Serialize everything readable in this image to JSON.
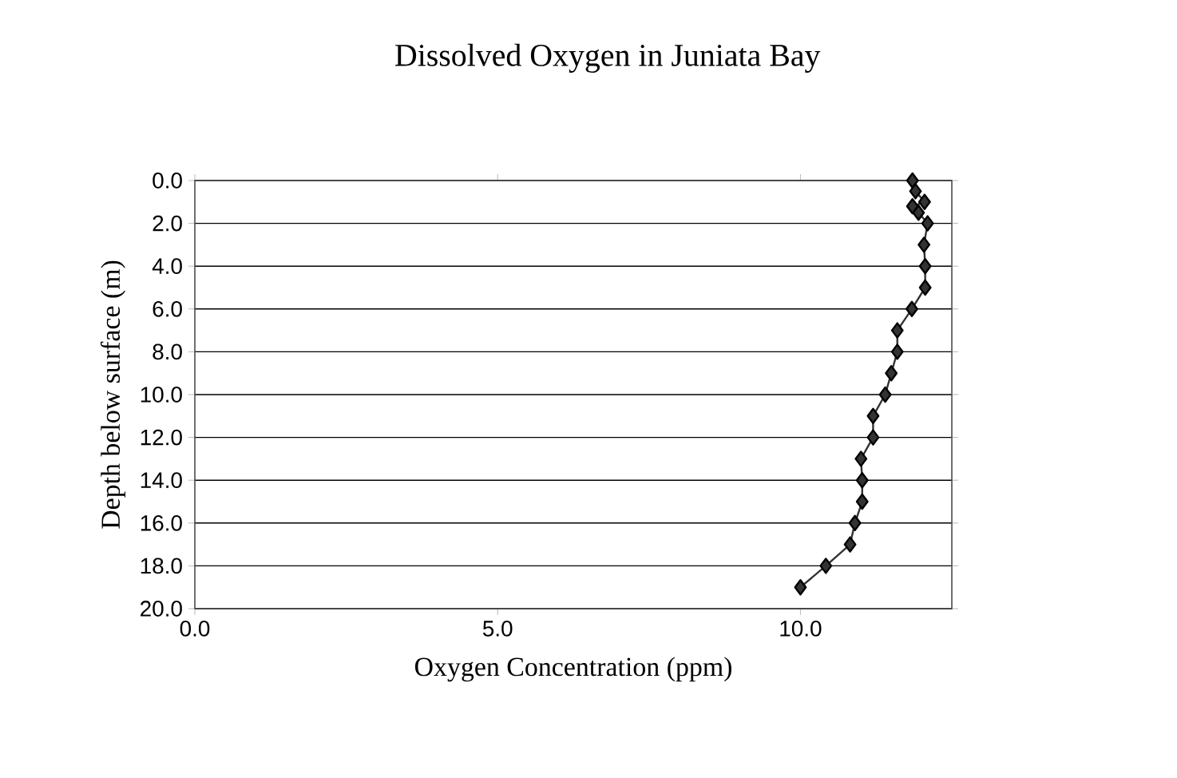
{
  "chart_data": {
    "type": "line",
    "title": "Dissolved Oxygen in Juniata Bay",
    "xlabel": "Oxygen Concentration (ppm)",
    "ylabel": "Depth below surface (m)",
    "x": [
      11.85,
      11.9,
      12.05,
      11.85,
      11.95,
      12.1,
      12.04,
      12.06,
      12.06,
      11.84,
      11.6,
      11.6,
      11.5,
      11.4,
      11.2,
      11.2,
      11.0,
      11.02,
      11.02,
      10.9,
      10.82,
      10.42,
      10.0
    ],
    "values": [
      0,
      0.5,
      1.0,
      1.2,
      1.5,
      2,
      3,
      4,
      5,
      6,
      7,
      8,
      9,
      10,
      11,
      12,
      13,
      14,
      15,
      16,
      17,
      18,
      19
    ],
    "color": "#333333",
    "marker": "diamond",
    "line_style": "solid",
    "grid": "y",
    "xlim": [
      0,
      12.5
    ],
    "ylim": [
      20,
      0
    ],
    "xticks": [
      {
        "value": 0,
        "label": "0.0"
      },
      {
        "value": 5,
        "label": "5.0"
      },
      {
        "value": 10,
        "label": "10.0"
      }
    ],
    "yticks": [
      {
        "value": 0,
        "label": "0.0"
      },
      {
        "value": 2,
        "label": "2.0"
      },
      {
        "value": 4,
        "label": "4.0"
      },
      {
        "value": 6,
        "label": "6.0"
      },
      {
        "value": 8,
        "label": "8.0"
      },
      {
        "value": 10,
        "label": "10.0"
      },
      {
        "value": 12,
        "label": "12.0"
      },
      {
        "value": 14,
        "label": "14.0"
      },
      {
        "value": 16,
        "label": "16.0"
      },
      {
        "value": 18,
        "label": "18.0"
      },
      {
        "value": 20,
        "label": "20.0"
      }
    ]
  }
}
